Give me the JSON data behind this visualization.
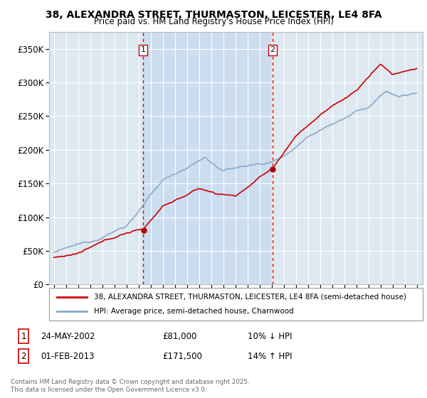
{
  "title": "38, ALEXANDRA STREET, THURMASTON, LEICESTER, LE4 8FA",
  "subtitle": "Price paid vs. HM Land Registry's House Price Index (HPI)",
  "y_ticks": [
    0,
    50000,
    100000,
    150000,
    200000,
    250000,
    300000,
    350000
  ],
  "y_tick_labels": [
    "£0",
    "£50K",
    "£100K",
    "£150K",
    "£200K",
    "£250K",
    "£300K",
    "£350K"
  ],
  "purchase1_year": 2002.38,
  "purchase1_price": 81000,
  "purchase1_label": "1",
  "purchase1_date": "24-MAY-2002",
  "purchase1_hpi": "10% ↓ HPI",
  "purchase2_year": 2013.08,
  "purchase2_price": 171500,
  "purchase2_label": "2",
  "purchase2_date": "01-FEB-2013",
  "purchase2_hpi": "14% ↑ HPI",
  "line_color_property": "#cc0000",
  "line_color_hpi": "#88aacc",
  "bg_color": "#dde8f0",
  "shade_color": "#ccddf0",
  "grid_color": "#ffffff",
  "legend_label_property": "38, ALEXANDRA STREET, THURMASTON, LEICESTER, LE4 8FA (semi-detached house)",
  "legend_label_hpi": "HPI: Average price, semi-detached house, Charnwood",
  "footnote": "Contains HM Land Registry data © Crown copyright and database right 2025.\nThis data is licensed under the Open Government Licence v3.0.",
  "marker_color": "#aa0000",
  "dashed_line_color": "#cc0000"
}
